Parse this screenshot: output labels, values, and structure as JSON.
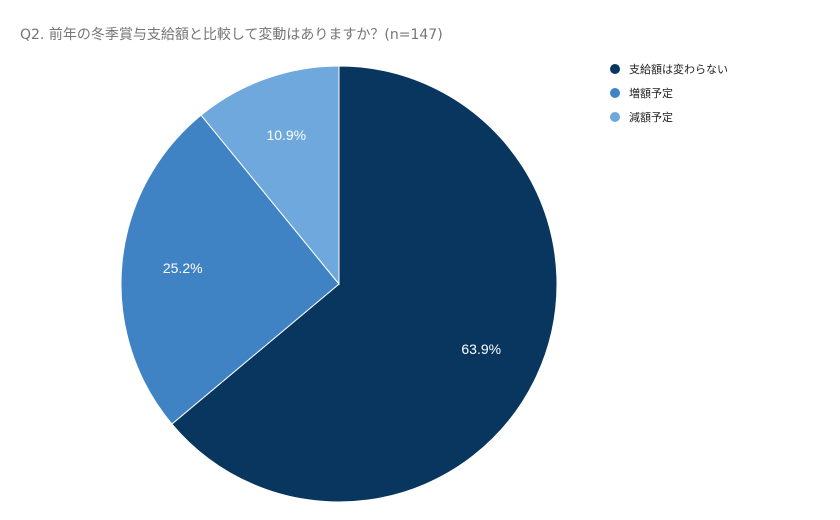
{
  "chart_data": {
    "type": "pie",
    "title": "Q2.  前年の冬季賞与支給額と比較して変動はありますか？(n=147)",
    "categories": [
      "支給額は変わらない",
      "増額予定",
      "減額予定"
    ],
    "values": [
      63.9,
      25.2,
      10.9
    ],
    "data_labels": [
      "63.9%",
      "25.2%",
      "10.9%"
    ],
    "colors": [
      "#08365f",
      "#3f83c5",
      "#6fa8dc"
    ],
    "legend_position": "top-right",
    "start_angle": "12 o'clock, clockwise"
  }
}
